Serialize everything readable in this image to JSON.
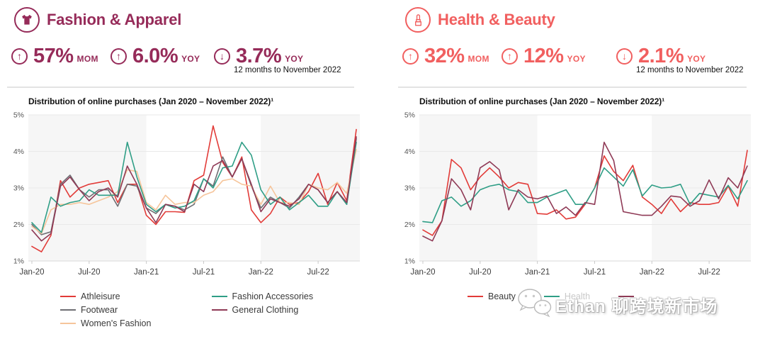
{
  "panels": [
    {
      "title": "Fashion & Apparel",
      "accent": "#962B59",
      "icon": "tshirt-icon",
      "stats": [
        {
          "direction": "up",
          "value": "57%",
          "unit": "MOM"
        },
        {
          "direction": "up",
          "value": "6.0%",
          "unit": "YOY"
        },
        {
          "direction": "down",
          "value": "3.7%",
          "unit": "YOY"
        }
      ],
      "note": "12 months to November 2022"
    },
    {
      "title": "Health & Beauty",
      "accent": "#F15F5F",
      "icon": "lipstick-icon",
      "stats": [
        {
          "direction": "up",
          "value": "32%",
          "unit": "MOM"
        },
        {
          "direction": "up",
          "value": "12%",
          "unit": "YOY"
        },
        {
          "direction": "down",
          "value": "2.1%",
          "unit": "YOY"
        }
      ],
      "note": "12 months to November 2022"
    }
  ],
  "watermark": {
    "icon": "wechat-icon",
    "text": "Ethan 聊跨境新市场"
  },
  "chart_data": [
    {
      "type": "line",
      "title": "Distribution of online purchases (Jan 2020 – November 2022)¹",
      "xlabel": "",
      "ylabel": "",
      "ylim": [
        1,
        5
      ],
      "y_tick_labels": [
        "1%",
        "2%",
        "3%",
        "4%",
        "5%"
      ],
      "x": [
        "Jan-20",
        "Feb-20",
        "Mar-20",
        "Apr-20",
        "May-20",
        "Jun-20",
        "Jul-20",
        "Aug-20",
        "Sep-20",
        "Oct-20",
        "Nov-20",
        "Dec-20",
        "Jan-21",
        "Feb-21",
        "Mar-21",
        "Apr-21",
        "May-21",
        "Jun-21",
        "Jul-21",
        "Aug-21",
        "Sep-21",
        "Oct-21",
        "Nov-21",
        "Dec-21",
        "Jan-22",
        "Feb-22",
        "Mar-22",
        "Apr-22",
        "May-22",
        "Jun-22",
        "Jul-22",
        "Aug-22",
        "Sep-22",
        "Oct-22",
        "Nov-22"
      ],
      "x_tick_idx": [
        0,
        6,
        12,
        18,
        24,
        30
      ],
      "bands": [
        [
          0,
          12
        ],
        [
          24,
          34
        ]
      ],
      "band_color": "#f6f6f6",
      "legend_layout": "columns",
      "legend_columns": [
        [
          0,
          1,
          2
        ],
        [
          3,
          4
        ]
      ],
      "series": [
        {
          "name": "Athleisure",
          "color": "#E23B38",
          "values": [
            1.4,
            1.25,
            1.7,
            3.2,
            2.75,
            3.0,
            3.1,
            3.15,
            3.2,
            2.6,
            3.1,
            3.1,
            2.25,
            2.0,
            2.35,
            2.35,
            2.33,
            3.2,
            3.35,
            4.7,
            3.7,
            3.3,
            3.85,
            2.4,
            2.05,
            2.3,
            2.75,
            2.55,
            2.6,
            2.9,
            3.4,
            2.55,
            3.15,
            2.65,
            4.6
          ]
        },
        {
          "name": "Footwear",
          "color": "#6F6E73",
          "values": [
            2.0,
            1.72,
            1.8,
            3.1,
            3.35,
            2.95,
            2.75,
            2.95,
            2.95,
            2.5,
            3.1,
            3.05,
            2.45,
            2.3,
            2.55,
            2.5,
            2.4,
            2.55,
            3.25,
            3.05,
            3.85,
            3.3,
            3.8,
            3.05,
            2.45,
            2.75,
            2.6,
            2.45,
            2.75,
            3.1,
            2.95,
            2.6,
            2.9,
            2.55,
            4.35
          ]
        },
        {
          "name": "Women's Fashion",
          "color": "#F6C59B",
          "values": [
            1.95,
            1.75,
            2.4,
            2.55,
            2.55,
            2.6,
            2.55,
            2.65,
            2.75,
            2.9,
            3.5,
            3.45,
            2.6,
            2.4,
            2.8,
            2.55,
            2.6,
            2.6,
            2.8,
            2.9,
            3.2,
            3.25,
            3.1,
            3.05,
            2.55,
            3.05,
            2.6,
            2.6,
            2.55,
            3.1,
            3.0,
            2.95,
            3.15,
            2.85,
            4.05
          ]
        },
        {
          "name": "Fashion Accessories",
          "color": "#2F9E86",
          "values": [
            2.05,
            1.78,
            2.75,
            2.5,
            2.6,
            2.65,
            2.95,
            2.8,
            2.8,
            2.8,
            4.25,
            3.3,
            2.55,
            2.35,
            2.55,
            2.45,
            2.5,
            2.65,
            3.25,
            3.0,
            3.55,
            3.6,
            4.25,
            3.9,
            2.95,
            2.55,
            2.75,
            2.4,
            2.6,
            2.8,
            2.5,
            2.5,
            2.9,
            2.55,
            4.25
          ]
        },
        {
          "name": "General Clothing",
          "color": "#8F3A56",
          "values": [
            1.85,
            1.55,
            1.75,
            3.05,
            3.3,
            2.95,
            2.65,
            2.9,
            3.0,
            2.75,
            3.6,
            3.1,
            2.45,
            2.05,
            2.55,
            2.5,
            2.35,
            3.1,
            2.9,
            3.6,
            3.75,
            3.3,
            3.8,
            3.1,
            2.35,
            2.7,
            2.6,
            2.5,
            2.7,
            3.1,
            2.95,
            2.6,
            2.9,
            2.6,
            4.4
          ]
        }
      ]
    },
    {
      "type": "line",
      "title": "Distribution of online purchases (Jan 2020 – November 2022)¹",
      "xlabel": "",
      "ylabel": "",
      "ylim": [
        1,
        5
      ],
      "y_tick_labels": [
        "1%",
        "2%",
        "3%",
        "4%",
        "5%"
      ],
      "x": [
        "Jan-20",
        "Feb-20",
        "Mar-20",
        "Apr-20",
        "May-20",
        "Jun-20",
        "Jul-20",
        "Aug-20",
        "Sep-20",
        "Oct-20",
        "Nov-20",
        "Dec-20",
        "Jan-21",
        "Feb-21",
        "Mar-21",
        "Apr-21",
        "May-21",
        "Jun-21",
        "Jul-21",
        "Aug-21",
        "Sep-21",
        "Oct-21",
        "Nov-21",
        "Dec-21",
        "Jan-22",
        "Feb-22",
        "Mar-22",
        "Apr-22",
        "May-22",
        "Jun-22",
        "Jul-22",
        "Aug-22",
        "Sep-22",
        "Oct-22",
        "Nov-22"
      ],
      "x_tick_idx": [
        0,
        6,
        12,
        18,
        24,
        30
      ],
      "bands": [
        [
          0,
          12
        ],
        [
          24,
          34
        ]
      ],
      "band_color": "#f6f6f6",
      "legend_layout": "row",
      "series": [
        {
          "name": "Beauty",
          "color": "#E23B38",
          "values": [
            1.85,
            1.7,
            2.1,
            3.78,
            3.55,
            2.95,
            3.3,
            3.55,
            3.3,
            3.0,
            3.15,
            3.1,
            2.3,
            2.28,
            2.4,
            2.15,
            2.2,
            2.55,
            3.0,
            3.88,
            3.45,
            3.2,
            3.62,
            2.75,
            2.55,
            2.3,
            2.7,
            2.35,
            2.6,
            2.55,
            2.55,
            2.6,
            3.05,
            2.5,
            4.03
          ]
        },
        {
          "name": "Health",
          "color": "#2F9E86",
          "label_faint": true,
          "values": [
            2.08,
            2.05,
            2.65,
            2.75,
            2.5,
            2.65,
            2.95,
            3.05,
            3.1,
            2.95,
            2.9,
            2.6,
            2.6,
            2.75,
            2.85,
            2.95,
            2.55,
            2.55,
            3.0,
            3.55,
            3.3,
            3.05,
            3.5,
            2.78,
            3.08,
            3.0,
            3.02,
            3.1,
            2.55,
            2.85,
            2.8,
            2.75,
            3.07,
            2.7,
            3.2
          ]
        },
        {
          "name": "",
          "color": "#8F3A56",
          "values": [
            1.68,
            1.55,
            2.1,
            3.25,
            2.95,
            2.4,
            3.55,
            3.72,
            3.5,
            2.4,
            2.95,
            2.75,
            2.7,
            2.78,
            2.3,
            2.48,
            2.25,
            2.6,
            2.55,
            4.25,
            3.75,
            2.35,
            2.3,
            2.25,
            2.25,
            2.5,
            2.78,
            2.75,
            2.5,
            2.65,
            3.22,
            2.7,
            3.28,
            3.0,
            3.6
          ]
        }
      ]
    }
  ]
}
